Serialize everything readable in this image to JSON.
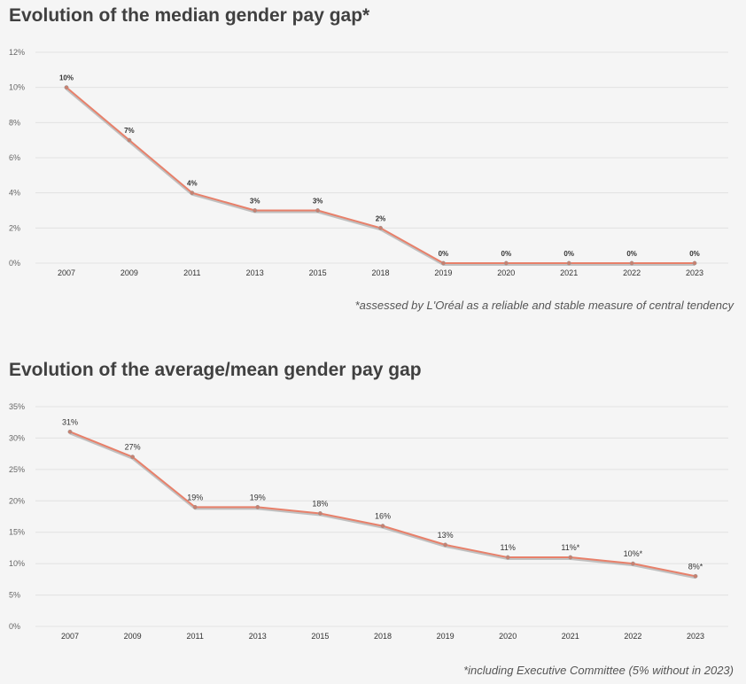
{
  "chart_data": [
    {
      "type": "line",
      "title": "Evolution of the median gender pay gap*",
      "footnote": "*assessed by L'Oréal as a reliable and stable measure of central tendency",
      "categories": [
        "2007",
        "2009",
        "2011",
        "2013",
        "2015",
        "2018",
        "2019",
        "2020",
        "2021",
        "2022",
        "2023"
      ],
      "values": [
        10,
        7,
        4,
        3,
        3,
        2,
        0,
        0,
        0,
        0,
        0
      ],
      "data_labels": [
        "10%",
        "7%",
        "4%",
        "3%",
        "3%",
        "2%",
        "0%",
        "0%",
        "0%",
        "0%",
        "0%"
      ],
      "yticks": [
        "0%",
        "2%",
        "4%",
        "6%",
        "8%",
        "10%",
        "12%"
      ],
      "ylim": [
        0,
        12
      ],
      "xlabel": "",
      "ylabel": "",
      "line_color": "#e8806a",
      "shadow_color": "#a9a9a9"
    },
    {
      "type": "line",
      "title": "Evolution of the average/mean gender pay gap",
      "footnote": "*including Executive Committee (5% without in 2023)",
      "categories": [
        "2007",
        "2009",
        "2011",
        "2013",
        "2015",
        "2018",
        "2019",
        "2020",
        "2021",
        "2022",
        "2023"
      ],
      "values": [
        31,
        27,
        19,
        19,
        18,
        16,
        13,
        11,
        11,
        10,
        8
      ],
      "data_labels": [
        "31%",
        "27%",
        "19%",
        "19%",
        "18%",
        "16%",
        "13%",
        "11%",
        "11%*",
        "10%*",
        "8%*"
      ],
      "yticks": [
        "0%",
        "5%",
        "10%",
        "15%",
        "20%",
        "25%",
        "30%",
        "35%"
      ],
      "ylim": [
        0,
        35
      ],
      "xlabel": "",
      "ylabel": "",
      "line_color": "#e8806a",
      "shadow_color": "#a9a9a9"
    }
  ]
}
